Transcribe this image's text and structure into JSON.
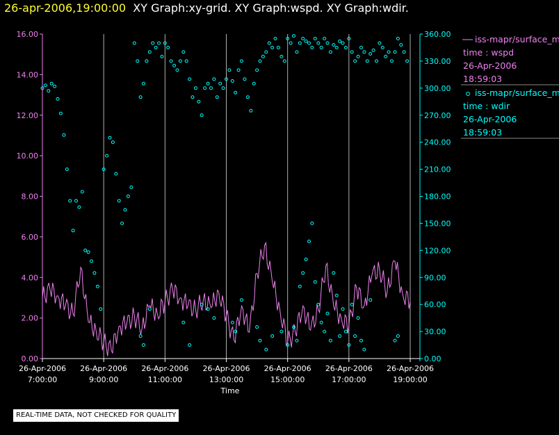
{
  "header": {
    "datetime": "26-apr-2006,19:00:00",
    "graphs": "XY Graph:xy-grid.  XY Graph:wspd.  XY Graph:wdir."
  },
  "footer": {
    "note": "REAL-TIME DATA, NOT CHECKED FOR QUALITY"
  },
  "colors": {
    "background": "#000000",
    "title_time": "#ffff33",
    "wspd": "#ee82ee",
    "wdir": "#00ffff",
    "grid": "#ffffff"
  },
  "chart_data": {
    "type": "line",
    "xlabel": "Time",
    "x_start_hour": 7,
    "x_end_hour": 19,
    "x_ticks": [
      {
        "hour": 7,
        "date": "26-Apr-2006",
        "time": "7:00:00"
      },
      {
        "hour": 9,
        "date": "26-Apr-2006",
        "time": "9:00:00"
      },
      {
        "hour": 11,
        "date": "26-Apr-2006",
        "time": "11:00:00"
      },
      {
        "hour": 13,
        "date": "26-Apr-2006",
        "time": "13:00:00"
      },
      {
        "hour": 15,
        "date": "26-Apr-2006",
        "time": "15:00:00"
      },
      {
        "hour": 17,
        "date": "26-Apr-2006",
        "time": "17:00:00"
      },
      {
        "hour": 19,
        "date": "26-Apr-2006",
        "time": "19:00:00"
      }
    ],
    "vertical_gridlines_hours": [
      9,
      11,
      13,
      15,
      17,
      19
    ],
    "y_left": {
      "range": [
        0,
        16
      ],
      "ticks": [
        "0.00",
        "2.00",
        "4.00",
        "6.00",
        "8.00",
        "10.00",
        "12.00",
        "14.00",
        "16.00"
      ]
    },
    "y_right": {
      "range": [
        0,
        360
      ],
      "ticks": [
        "0.00",
        "30.00",
        "60.00",
        "90.00",
        "120.00",
        "150.00",
        "180.00",
        "210.00",
        "240.00",
        "270.00",
        "300.00",
        "330.00",
        "360.00"
      ]
    },
    "legend": [
      {
        "marker": "line",
        "name": "iss-mapr/surface_m",
        "var": "time : wspd",
        "date": "26-Apr-2006",
        "time": "18:59:03"
      },
      {
        "marker": "circle",
        "name": "iss-mapr/surface_m",
        "var": "time : wdir",
        "date": "26-Apr-2006",
        "time": "18:59:03"
      }
    ],
    "series": [
      {
        "name": "wspd",
        "axis": "left",
        "style": "line",
        "x_hours": [
          7.0,
          7.25,
          7.5,
          7.75,
          8.0,
          8.25,
          8.5,
          8.75,
          9.0,
          9.25,
          9.5,
          9.75,
          10.0,
          10.25,
          10.5,
          10.75,
          11.0,
          11.25,
          11.5,
          11.75,
          12.0,
          12.25,
          12.5,
          12.75,
          13.0,
          13.25,
          13.5,
          13.75,
          14.0,
          14.25,
          14.5,
          14.75,
          15.0,
          15.25,
          15.5,
          15.75,
          16.0,
          16.25,
          16.5,
          16.75,
          17.0,
          17.25,
          17.5,
          17.75,
          18.0,
          18.25,
          18.5,
          18.75,
          19.0
        ],
        "values": [
          3.0,
          3.4,
          3.1,
          2.6,
          2.2,
          4.5,
          1.8,
          1.4,
          0.8,
          0.4,
          1.6,
          1.7,
          2.1,
          1.5,
          2.6,
          2.2,
          2.8,
          3.4,
          3.0,
          2.6,
          2.4,
          2.9,
          2.5,
          3.3,
          2.1,
          0.9,
          2.6,
          1.3,
          4.2,
          5.6,
          3.8,
          2.4,
          0.8,
          1.3,
          2.6,
          1.4,
          2.4,
          4.6,
          2.6,
          2.0,
          1.6,
          3.5,
          2.6,
          4.1,
          4.4,
          3.3,
          4.8,
          3.2,
          2.8
        ]
      },
      {
        "name": "wdir",
        "axis": "right",
        "style": "scatter",
        "x_hours": [
          7.0,
          7.1,
          7.2,
          7.3,
          7.4,
          7.5,
          7.6,
          7.7,
          7.8,
          7.9,
          8.0,
          8.1,
          8.2,
          8.3,
          8.4,
          8.5,
          8.6,
          8.7,
          8.8,
          8.9,
          9.0,
          9.1,
          9.2,
          9.3,
          9.4,
          9.5,
          9.6,
          9.7,
          9.8,
          9.9,
          10.0,
          10.1,
          10.2,
          10.3,
          10.4,
          10.5,
          10.6,
          10.7,
          10.8,
          10.9,
          11.0,
          11.1,
          11.2,
          11.3,
          11.4,
          11.5,
          11.6,
          11.7,
          11.8,
          11.9,
          12.0,
          12.1,
          12.2,
          12.3,
          12.4,
          12.5,
          12.6,
          12.7,
          12.8,
          12.9,
          13.0,
          13.1,
          13.2,
          13.3,
          13.4,
          13.5,
          13.6,
          13.7,
          13.8,
          13.9,
          14.0,
          14.1,
          14.2,
          14.3,
          14.4,
          14.5,
          14.6,
          14.7,
          14.8,
          14.9,
          15.0,
          15.1,
          15.2,
          15.3,
          15.4,
          15.5,
          15.6,
          15.7,
          15.8,
          15.9,
          16.0,
          16.1,
          16.2,
          16.3,
          16.4,
          16.5,
          16.6,
          16.7,
          16.8,
          16.9,
          17.0,
          17.1,
          17.2,
          17.3,
          17.4,
          17.5,
          17.6,
          17.7,
          17.8,
          17.9,
          18.0,
          18.1,
          18.2,
          18.3,
          18.4,
          18.5,
          18.6,
          18.7,
          18.8,
          18.9
        ],
        "values": [
          300,
          303,
          297,
          305,
          302,
          288,
          272,
          248,
          210,
          175,
          142,
          175,
          168,
          185,
          120,
          118,
          108,
          95,
          80,
          55,
          210,
          225,
          245,
          240,
          205,
          175,
          150,
          165,
          180,
          190,
          350,
          330,
          290,
          305,
          330,
          340,
          350,
          345,
          350,
          335,
          350,
          345,
          330,
          325,
          320,
          330,
          340,
          330,
          310,
          290,
          300,
          285,
          270,
          300,
          305,
          300,
          310,
          290,
          305,
          300,
          310,
          320,
          308,
          295,
          320,
          330,
          310,
          290,
          275,
          305,
          320,
          330,
          335,
          340,
          350,
          345,
          355,
          345,
          335,
          330,
          355,
          350,
          358,
          340,
          350,
          355,
          352,
          350,
          345,
          355,
          350,
          345,
          355,
          350,
          340,
          348,
          345,
          352,
          350,
          345,
          355,
          340,
          330,
          335,
          345,
          340,
          330,
          338,
          342,
          330,
          350,
          345,
          335,
          340,
          330,
          340,
          355,
          348,
          340,
          330
        ]
      },
      {
        "name": "wdir-low-cluster",
        "axis": "right",
        "style": "scatter",
        "x_hours": [
          10.2,
          10.3,
          10.5,
          11.6,
          11.8,
          12.2,
          12.4,
          12.6,
          13.2,
          13.3,
          13.5,
          14.0,
          14.1,
          14.3,
          14.5,
          14.8,
          15.0,
          15.2,
          15.3,
          15.4,
          15.5,
          15.6,
          15.7,
          15.8,
          15.9,
          16.0,
          16.1,
          16.2,
          16.3,
          16.4,
          16.5,
          16.6,
          16.7,
          16.8,
          16.9,
          17.0,
          17.1,
          17.2,
          17.3,
          17.4,
          17.5,
          17.7,
          18.5,
          18.6
        ],
        "values": [
          25,
          15,
          55,
          40,
          15,
          60,
          55,
          45,
          40,
          30,
          65,
          35,
          20,
          10,
          25,
          30,
          15,
          35,
          20,
          80,
          95,
          110,
          130,
          150,
          85,
          60,
          40,
          30,
          50,
          20,
          95,
          70,
          25,
          55,
          30,
          15,
          60,
          25,
          45,
          20,
          10,
          65,
          20,
          25
        ]
      }
    ]
  }
}
